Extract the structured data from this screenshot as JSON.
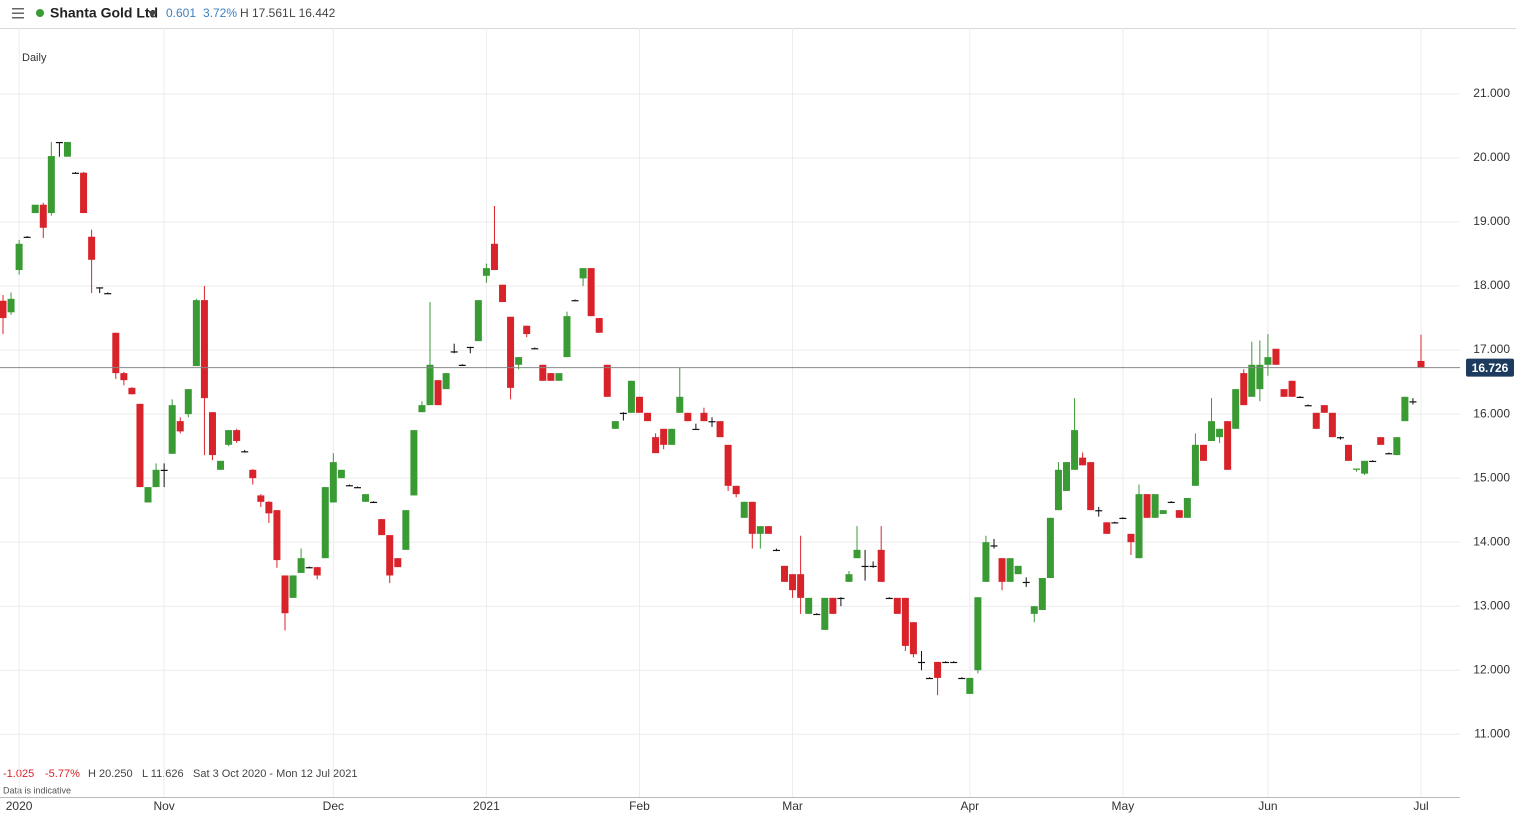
{
  "chart_data": {
    "type": "candlestick",
    "title": "Shanta Gold Ltd",
    "change": "0.601",
    "change_pct": "3.72%",
    "high_label": "H 17.561",
    "low_label": "L 16.442",
    "interval": "Daily",
    "period_change": "-1.025",
    "period_change_pct": "-5.77%",
    "period_high": "H 20.250",
    "period_low": "L 11.626",
    "period_range": "Sat 3 Oct 2020 - Mon 12 Jul 2021",
    "note": "Data is indicative",
    "last_price": 16.726,
    "up_color": "#3a9b35",
    "down_color": "#d9232a",
    "doji_color": "#111111",
    "grid": true,
    "ylim": [
      10.02,
      22.03
    ],
    "yticks": [
      {
        "value": 11,
        "label": "11.000"
      },
      {
        "value": 12,
        "label": "12.000"
      },
      {
        "value": 13,
        "label": "13.000"
      },
      {
        "value": 14,
        "label": "14.000"
      },
      {
        "value": 15,
        "label": "15.000"
      },
      {
        "value": 16,
        "label": "16.000"
      },
      {
        "value": 17,
        "label": "17.000"
      },
      {
        "value": 18,
        "label": "18.000"
      },
      {
        "value": 19,
        "label": "19.000"
      },
      {
        "value": 20,
        "label": "20.000"
      },
      {
        "value": 21,
        "label": "21.000"
      }
    ],
    "categories": [
      null,
      null,
      "2020",
      null,
      null,
      null,
      null,
      null,
      null,
      null,
      null,
      null,
      null,
      null,
      null,
      null,
      null,
      null,
      null,
      null,
      "Nov",
      null,
      null,
      null,
      null,
      null,
      null,
      null,
      null,
      null,
      null,
      null,
      null,
      null,
      null,
      null,
      null,
      null,
      null,
      null,
      null,
      "Dec",
      null,
      null,
      null,
      null,
      null,
      null,
      null,
      null,
      null,
      null,
      null,
      null,
      null,
      null,
      null,
      null,
      null,
      null,
      "2021",
      null,
      null,
      null,
      null,
      null,
      null,
      null,
      null,
      null,
      null,
      null,
      null,
      null,
      null,
      null,
      null,
      null,
      null,
      "Feb",
      null,
      null,
      null,
      null,
      null,
      null,
      null,
      null,
      null,
      null,
      null,
      null,
      null,
      null,
      null,
      null,
      null,
      null,
      "Mar",
      null,
      null,
      null,
      null,
      null,
      null,
      null,
      null,
      null,
      null,
      null,
      null,
      null,
      null,
      null,
      null,
      null,
      null,
      null,
      null,
      null,
      "Apr",
      null,
      null,
      null,
      null,
      null,
      null,
      null,
      null,
      null,
      null,
      null,
      null,
      null,
      null,
      null,
      null,
      null,
      null,
      "May",
      null,
      null,
      null,
      null,
      null,
      null,
      null,
      null,
      null,
      null,
      null,
      null,
      null,
      null,
      null,
      null,
      null,
      "Jun",
      null,
      null,
      null,
      null,
      null,
      null,
      null,
      null,
      null,
      null,
      null,
      null,
      null,
      null,
      null,
      null,
      null,
      null,
      "Jul"
    ],
    "open": [
      17.77,
      17.59,
      18.25,
      18.77,
      19.14,
      19.27,
      19.14,
      20.25,
      20.02,
      19.77,
      19.77,
      18.77,
      17.98,
      17.89,
      17.27,
      16.64,
      16.41,
      16.16,
      14.62,
      14.86,
      15.13,
      15.38,
      15.89,
      16.0,
      16.75,
      17.78,
      16.03,
      15.13,
      15.52,
      15.75,
      15.42,
      15.13,
      14.73,
      14.63,
      14.5,
      13.48,
      13.13,
      13.52,
      13.61,
      13.61,
      13.75,
      14.62,
      15.0,
      14.89,
      14.86,
      14.63,
      14.63,
      14.36,
      14.11,
      13.75,
      13.88,
      14.73,
      16.03,
      16.14,
      16.53,
      16.39,
      16.98,
      16.77,
      17.05,
      17.14,
      18.16,
      18.66,
      18.02,
      17.52,
      16.77,
      17.38,
      17.03,
      16.77,
      16.64,
      16.52,
      16.89,
      17.78,
      18.12,
      18.28,
      17.5,
      16.77,
      15.77,
      16.02,
      16.02,
      16.27,
      16.02,
      15.64,
      15.77,
      15.52,
      16.02,
      16.02,
      15.77,
      16.02,
      15.89,
      15.89,
      15.52,
      14.88,
      14.38,
      14.63,
      14.13,
      14.25,
      13.88,
      13.63,
      13.5,
      13.5,
      12.88,
      12.88,
      12.63,
      13.13,
      13.13,
      13.38,
      13.75,
      13.63,
      13.63,
      13.88,
      13.13,
      13.13,
      13.13,
      12.75,
      12.13,
      11.88,
      12.13,
      12.13,
      12.13,
      11.88,
      11.63,
      12.0,
      13.38,
      13.95,
      13.75,
      13.38,
      13.5,
      13.38,
      12.88,
      12.94,
      13.44,
      14.5,
      14.8,
      15.13,
      15.32,
      15.25,
      14.5,
      14.31,
      14.31,
      14.38,
      14.13,
      13.75,
      14.75,
      14.38,
      14.44,
      14.63,
      14.5,
      14.38,
      14.88,
      15.52,
      15.58,
      15.64,
      15.89,
      15.77,
      16.64,
      16.27,
      16.39,
      16.77,
      17.02,
      16.39,
      16.52,
      16.27,
      16.14,
      16.02,
      16.14,
      16.02,
      15.64,
      15.52,
      15.13,
      15.07,
      15.27,
      15.64,
      15.39,
      15.36,
      15.89,
      16.2,
      16.83
    ],
    "high": [
      17.86,
      17.9,
      18.72,
      18.78,
      19.27,
      19.3,
      20.25,
      20.25,
      20.25,
      19.78,
      19.78,
      18.88,
      17.98,
      17.9,
      17.27,
      16.66,
      16.42,
      16.16,
      14.86,
      15.23,
      15.23,
      16.23,
      15.95,
      16.39,
      17.8,
      18.0,
      16.03,
      15.27,
      15.75,
      15.77,
      15.44,
      15.14,
      14.75,
      14.64,
      14.5,
      13.48,
      13.48,
      13.9,
      13.62,
      13.61,
      14.86,
      15.39,
      15.13,
      14.9,
      14.87,
      14.75,
      14.64,
      14.36,
      14.11,
      13.75,
      14.5,
      15.75,
      16.2,
      17.75,
      16.53,
      16.64,
      17.1,
      16.78,
      17.05,
      17.78,
      18.35,
      19.25,
      18.02,
      17.52,
      16.89,
      17.38,
      17.04,
      16.77,
      16.64,
      16.64,
      17.6,
      17.79,
      18.28,
      18.28,
      17.5,
      16.77,
      15.89,
      16.03,
      16.52,
      16.27,
      16.02,
      15.7,
      15.77,
      15.77,
      16.72,
      16.02,
      15.85,
      16.1,
      15.95,
      15.89,
      15.52,
      14.88,
      14.63,
      14.63,
      14.25,
      14.25,
      13.9,
      13.63,
      13.5,
      14.1,
      13.13,
      12.89,
      13.13,
      13.13,
      13.14,
      13.55,
      14.25,
      13.88,
      13.7,
      14.25,
      13.14,
      13.13,
      13.13,
      12.75,
      12.3,
      11.89,
      12.13,
      12.14,
      12.14,
      11.89,
      11.88,
      13.14,
      14.1,
      14.05,
      13.75,
      13.75,
      13.63,
      13.45,
      13.0,
      13.44,
      14.38,
      15.25,
      15.25,
      16.25,
      15.4,
      15.25,
      14.55,
      14.31,
      14.32,
      14.39,
      14.13,
      14.9,
      14.75,
      14.75,
      14.5,
      14.64,
      14.5,
      14.69,
      15.7,
      15.52,
      16.25,
      15.77,
      15.89,
      16.39,
      16.7,
      17.13,
      17.15,
      17.25,
      17.02,
      16.39,
      16.52,
      16.28,
      16.15,
      16.02,
      16.14,
      16.02,
      15.65,
      15.52,
      15.15,
      15.27,
      15.28,
      15.64,
      15.4,
      15.64,
      16.27,
      16.25,
      17.24
    ],
    "low": [
      17.25,
      17.55,
      18.18,
      18.76,
      19.14,
      18.75,
      19.1,
      20.02,
      20.02,
      19.76,
      19.14,
      17.89,
      17.89,
      17.88,
      16.55,
      16.45,
      16.31,
      14.86,
      14.62,
      14.86,
      14.86,
      15.38,
      15.7,
      15.95,
      16.75,
      15.36,
      15.28,
      15.13,
      15.5,
      15.55,
      15.4,
      14.9,
      14.55,
      14.3,
      13.6,
      12.62,
      13.13,
      13.52,
      13.6,
      13.42,
      13.75,
      14.62,
      15.0,
      14.88,
      14.85,
      14.63,
      14.62,
      14.11,
      13.36,
      13.61,
      13.88,
      14.73,
      16.03,
      16.14,
      16.14,
      16.39,
      16.95,
      16.76,
      16.95,
      17.14,
      18.05,
      18.25,
      17.75,
      16.23,
      16.7,
      17.2,
      17.02,
      16.52,
      16.52,
      16.52,
      16.89,
      17.77,
      18.0,
      17.53,
      17.27,
      16.27,
      15.77,
      15.9,
      16.02,
      16.02,
      15.89,
      15.39,
      15.45,
      15.52,
      16.02,
      15.89,
      15.77,
      15.89,
      15.8,
      15.64,
      14.8,
      14.7,
      14.38,
      13.9,
      13.9,
      14.13,
      13.86,
      13.38,
      13.13,
      12.88,
      12.88,
      12.87,
      12.63,
      12.88,
      13.0,
      13.38,
      13.75,
      13.4,
      13.6,
      13.38,
      13.12,
      12.88,
      12.3,
      12.2,
      12.0,
      11.87,
      11.61,
      12.12,
      12.12,
      11.87,
      11.63,
      11.95,
      13.38,
      13.9,
      13.25,
      13.38,
      13.5,
      13.3,
      12.75,
      12.94,
      13.44,
      14.5,
      14.8,
      15.13,
      15.2,
      14.5,
      14.4,
      14.13,
      14.3,
      14.37,
      13.8,
      13.75,
      14.38,
      14.38,
      14.44,
      14.62,
      14.38,
      14.38,
      14.88,
      15.27,
      15.58,
      15.55,
      15.13,
      15.77,
      16.14,
      16.27,
      16.2,
      16.6,
      16.77,
      16.27,
      16.27,
      16.26,
      16.13,
      15.77,
      16.02,
      15.64,
      15.6,
      15.27,
      15.1,
      15.05,
      15.26,
      15.52,
      15.38,
      15.36,
      15.89,
      16.15,
      16.72
    ],
    "close": [
      17.5,
      17.8,
      18.66,
      18.77,
      19.27,
      18.91,
      20.03,
      20.25,
      20.25,
      19.77,
      19.14,
      18.41,
      17.98,
      17.89,
      16.64,
      16.53,
      16.31,
      14.86,
      14.86,
      15.13,
      15.13,
      16.14,
      15.73,
      16.39,
      17.78,
      16.25,
      15.36,
      15.27,
      15.75,
      15.58,
      15.42,
      15.0,
      14.63,
      14.45,
      13.72,
      12.89,
      13.48,
      13.75,
      13.61,
      13.48,
      14.86,
      15.25,
      15.13,
      14.89,
      14.86,
      14.75,
      14.63,
      14.11,
      13.48,
      13.61,
      14.5,
      15.75,
      16.14,
      16.77,
      16.14,
      16.64,
      16.98,
      16.77,
      17.05,
      17.78,
      18.28,
      18.25,
      17.75,
      16.41,
      16.89,
      17.25,
      17.03,
      16.52,
      16.52,
      16.64,
      17.53,
      17.78,
      18.28,
      17.53,
      17.27,
      16.27,
      15.89,
      16.02,
      16.52,
      16.02,
      15.89,
      15.39,
      15.52,
      15.77,
      16.27,
      15.89,
      15.77,
      15.89,
      15.89,
      15.64,
      14.88,
      14.75,
      14.63,
      14.13,
      14.25,
      14.13,
      13.88,
      13.38,
      13.25,
      13.13,
      13.13,
      12.88,
      13.13,
      12.88,
      13.13,
      13.5,
      13.88,
      13.63,
      13.63,
      13.38,
      13.13,
      12.88,
      12.38,
      12.25,
      12.13,
      11.88,
      11.88,
      12.13,
      12.13,
      11.88,
      11.88,
      13.14,
      14.0,
      13.95,
      13.38,
      13.75,
      13.63,
      13.38,
      13.0,
      13.44,
      14.38,
      15.13,
      15.25,
      15.75,
      15.2,
      14.5,
      14.5,
      14.13,
      14.31,
      14.38,
      14.0,
      14.75,
      14.38,
      14.75,
      14.5,
      14.63,
      14.38,
      14.69,
      15.52,
      15.27,
      15.89,
      15.77,
      15.13,
      16.39,
      16.14,
      16.77,
      16.77,
      16.89,
      16.77,
      16.27,
      16.27,
      16.27,
      16.14,
      15.77,
      16.02,
      15.64,
      15.64,
      15.27,
      15.15,
      15.27,
      15.27,
      15.52,
      15.39,
      15.64,
      16.27,
      16.2,
      16.73
    ]
  }
}
